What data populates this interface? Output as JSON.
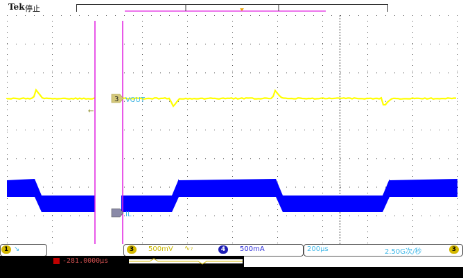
{
  "header": {
    "brand": "Tek",
    "status": "停止"
  },
  "channels": {
    "ch3": {
      "label": "VOUT",
      "number": "3",
      "scale": "500mV",
      "coupling": "∿₇",
      "color": "#ffff00",
      "label_color": "#40b8e8"
    },
    "ch4": {
      "label": "IL",
      "number": "4",
      "scale": "500mA",
      "color": "#0000ff",
      "label_color": "#40b8e8"
    }
  },
  "readouts": {
    "left_marker": "1",
    "timebase": "200μs",
    "sample_rate": "2.50G次/秒",
    "trigger_channel": "3",
    "trigger_time": "-281.0000μs"
  },
  "colors": {
    "grid": "#555555",
    "marker_magenta": "#e020e0",
    "ch3_chip": "#d4b800",
    "ch4_chip": "#1d1db5"
  }
}
